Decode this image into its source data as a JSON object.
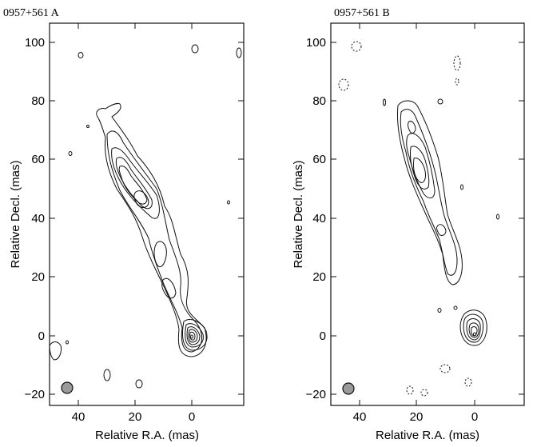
{
  "panels": [
    {
      "title": "0957+561  A",
      "xlabel": "Relative R.A.  (mas)",
      "ylabel": "Relative Decl.  (mas)",
      "x_ticks": [
        "40",
        "20",
        "0"
      ],
      "y_ticks": [
        "100",
        "80",
        "60",
        "40",
        "20",
        "0",
        "−20"
      ]
    },
    {
      "title": "0957+561  B",
      "xlabel": "Relative R.A.  (mas)",
      "ylabel": "Relative Decl.  (mas)",
      "x_ticks": [
        "40",
        "20",
        "0"
      ],
      "y_ticks": [
        "100",
        "80",
        "60",
        "40",
        "20",
        "0",
        "−20"
      ]
    }
  ],
  "axes": {
    "x_range_mas": [
      50,
      -18
    ],
    "y_range_mas": [
      -24,
      106
    ],
    "x_tick_values": [
      40,
      20,
      0
    ],
    "y_tick_values": [
      100,
      80,
      60,
      40,
      20,
      0,
      -20
    ]
  },
  "beam_icon": "shaded-circle"
}
